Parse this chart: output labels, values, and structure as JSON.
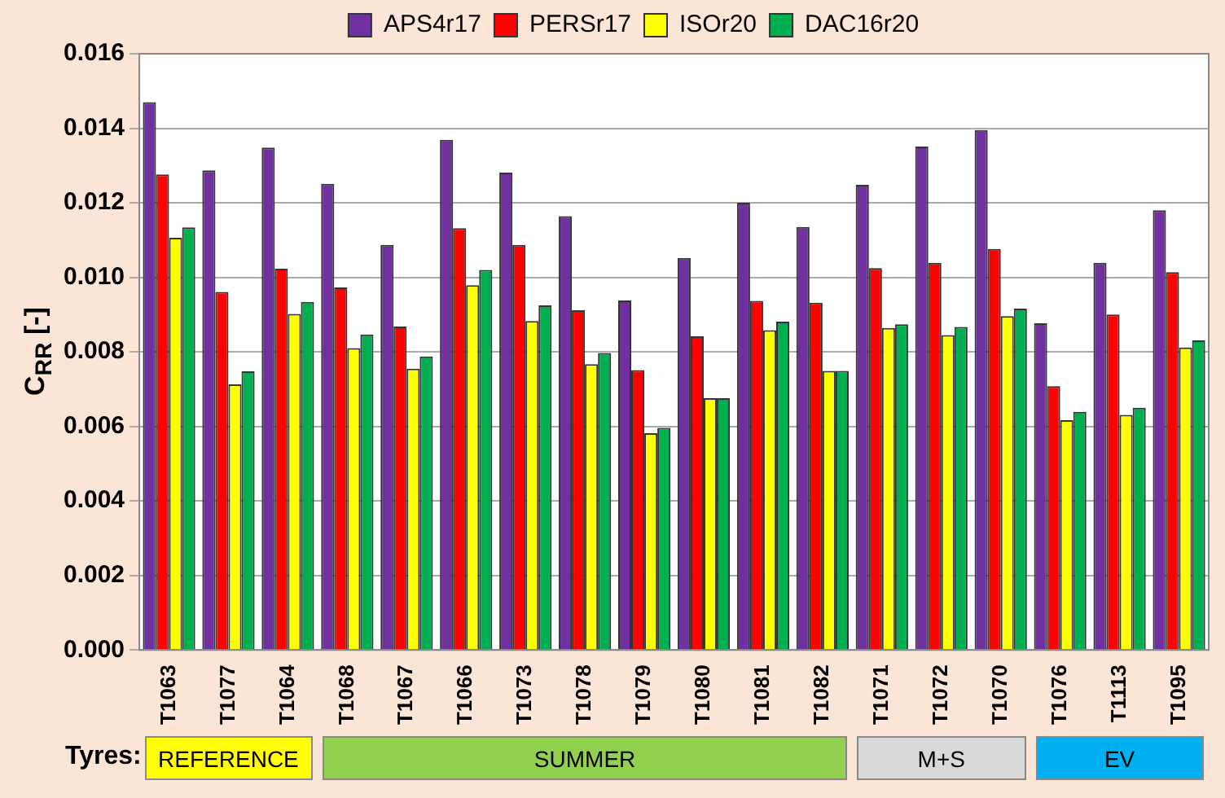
{
  "chart_data": {
    "type": "bar",
    "ylabel": "C$_{RR}$ [-]",
    "categories": [
      "T1063",
      "T1077",
      "T1064",
      "T1068",
      "T1067",
      "T1066",
      "T1073",
      "T1078",
      "T1079",
      "T1080",
      "T1081",
      "T1082",
      "T1071",
      "T1072",
      "T1070",
      "T1076",
      "T1113",
      "T1095"
    ],
    "series": [
      {
        "name": "APS4r17",
        "color": "#7030a0",
        "values": [
          0.0147,
          0.01287,
          0.01348,
          0.01251,
          0.01087,
          0.01369,
          0.01281,
          0.01164,
          0.00938,
          0.01052,
          0.012,
          0.01135,
          0.01248,
          0.01351,
          0.01395,
          0.00877,
          0.01039,
          0.0118
        ]
      },
      {
        "name": "PERSr17",
        "color": "#ff0000",
        "values": [
          0.01276,
          0.00961,
          0.01023,
          0.00973,
          0.00868,
          0.01132,
          0.01087,
          0.00912,
          0.00751,
          0.00842,
          0.00937,
          0.00932,
          0.01025,
          0.01039,
          0.01076,
          0.00708,
          0.009,
          0.01014
        ]
      },
      {
        "name": "ISOr20",
        "color": "#ffff00",
        "values": [
          0.01106,
          0.00713,
          0.00902,
          0.0081,
          0.00755,
          0.00979,
          0.00883,
          0.00767,
          0.00582,
          0.00676,
          0.00858,
          0.00749,
          0.00864,
          0.00845,
          0.00896,
          0.00617,
          0.00631,
          0.00812
        ]
      },
      {
        "name": "DAC16r20",
        "color": "#00b050",
        "values": [
          0.01134,
          0.00748,
          0.00934,
          0.00847,
          0.00788,
          0.0102,
          0.00925,
          0.00797,
          0.00596,
          0.00676,
          0.00881,
          0.00749,
          0.00874,
          0.00867,
          0.00916,
          0.00639,
          0.0065,
          0.00831
        ]
      }
    ],
    "ylim": [
      0,
      0.016
    ],
    "yticks": [
      {
        "value": 0,
        "label": "0.000"
      },
      {
        "value": 0.002,
        "label": "0.002"
      },
      {
        "value": 0.004,
        "label": "0.004"
      },
      {
        "value": 0.006,
        "label": "0.006"
      },
      {
        "value": 0.008,
        "label": "0.008"
      },
      {
        "value": 0.01,
        "label": "0.010"
      },
      {
        "value": 0.012,
        "label": "0.012"
      },
      {
        "value": 0.014,
        "label": "0.014"
      },
      {
        "value": 0.016,
        "label": "0.016"
      }
    ],
    "grid": "y",
    "legend": "top",
    "annotations": [
      "Tyres:",
      "REFERENCE",
      "SUMMER",
      "M+S",
      "EV"
    ]
  }
}
